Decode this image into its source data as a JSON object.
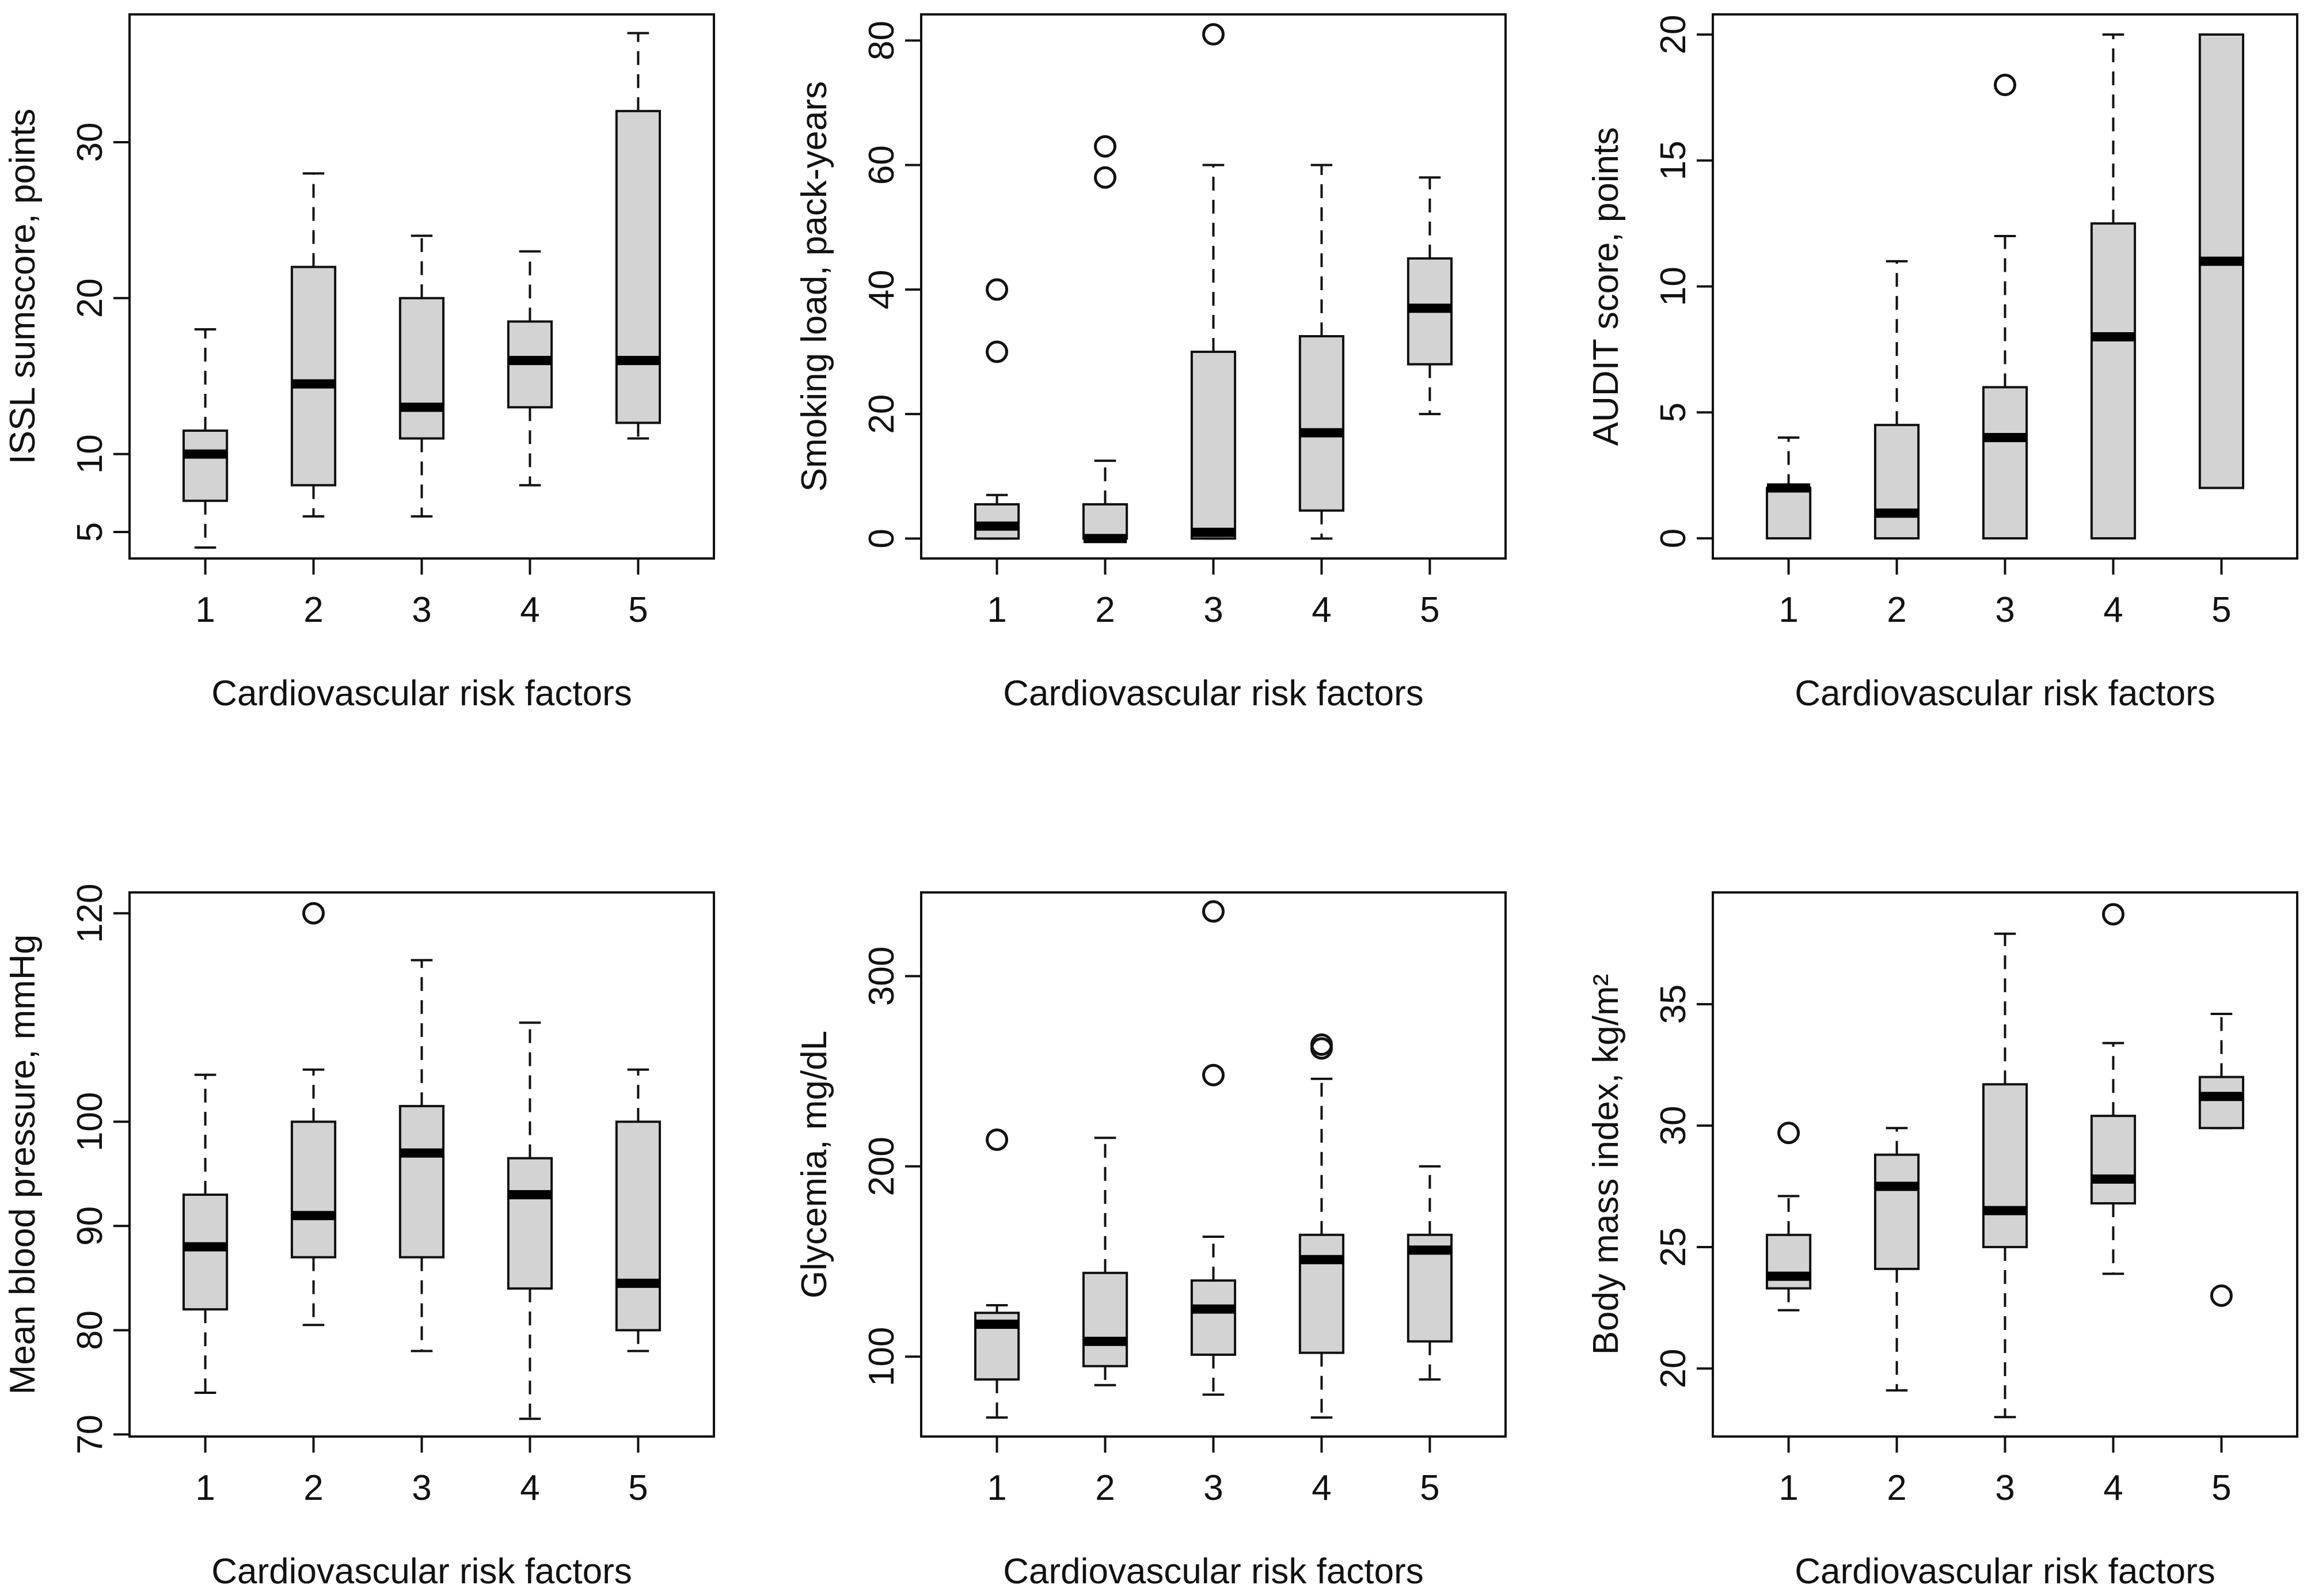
{
  "chart_data": [
    {
      "type": "boxplot",
      "xlabel": "Cardiovascular risk factors",
      "ylabel": "ISSL sumscore, points",
      "categories": [
        "1",
        "2",
        "3",
        "4",
        "5"
      ],
      "ylim": [
        3.3,
        38.2
      ],
      "yticks": [
        5,
        10,
        20,
        30
      ],
      "boxes": [
        {
          "whisker_low": 4,
          "q1": 7,
          "median": 10,
          "q3": 11.5,
          "whisker_high": 18,
          "outliers": []
        },
        {
          "whisker_low": 6,
          "q1": 8,
          "median": 14.5,
          "q3": 22,
          "whisker_high": 28,
          "outliers": []
        },
        {
          "whisker_low": 6,
          "q1": 11,
          "median": 13,
          "q3": 20,
          "whisker_high": 24,
          "outliers": []
        },
        {
          "whisker_low": 8,
          "q1": 13,
          "median": 16,
          "q3": 18.5,
          "whisker_high": 23,
          "outliers": []
        },
        {
          "whisker_low": 11,
          "q1": 12,
          "median": 16,
          "q3": 32,
          "whisker_high": 37,
          "outliers": []
        }
      ]
    },
    {
      "type": "boxplot",
      "xlabel": "Cardiovascular risk factors",
      "ylabel": "Smoking load, pack-years",
      "categories": [
        "1",
        "2",
        "3",
        "4",
        "5"
      ],
      "ylim": [
        -3.2,
        84.2
      ],
      "yticks": [
        0,
        20,
        40,
        60,
        80
      ],
      "boxes": [
        {
          "whisker_low": 0,
          "q1": 0,
          "median": 2,
          "q3": 5.5,
          "whisker_high": 7,
          "outliers": [
            30,
            40
          ]
        },
        {
          "whisker_low": 0,
          "q1": 0,
          "median": 0,
          "q3": 5.5,
          "whisker_high": 12.5,
          "outliers": [
            58,
            63
          ]
        },
        {
          "whisker_low": 0,
          "q1": 0,
          "median": 1,
          "q3": 30,
          "whisker_high": 60,
          "outliers": [
            81
          ]
        },
        {
          "whisker_low": 0,
          "q1": 4.5,
          "median": 17,
          "q3": 32.5,
          "whisker_high": 60,
          "outliers": []
        },
        {
          "whisker_low": 20,
          "q1": 28,
          "median": 37,
          "q3": 45,
          "whisker_high": 58,
          "outliers": []
        }
      ]
    },
    {
      "type": "boxplot",
      "xlabel": "Cardiovascular risk factors",
      "ylabel": "AUDIT score, points",
      "categories": [
        "1",
        "2",
        "3",
        "4",
        "5"
      ],
      "ylim": [
        -0.8,
        20.8
      ],
      "yticks": [
        0,
        5,
        10,
        15,
        20
      ],
      "boxes": [
        {
          "whisker_low": 0,
          "q1": 0,
          "median": 2,
          "q3": 2,
          "whisker_high": 4,
          "outliers": []
        },
        {
          "whisker_low": 0,
          "q1": 0,
          "median": 1,
          "q3": 4.5,
          "whisker_high": 11,
          "outliers": []
        },
        {
          "whisker_low": 0,
          "q1": 0,
          "median": 4,
          "q3": 6,
          "whisker_high": 12,
          "outliers": [
            18
          ]
        },
        {
          "whisker_low": 0,
          "q1": 0,
          "median": 8,
          "q3": 12.5,
          "whisker_high": 20,
          "outliers": []
        },
        {
          "whisker_low": 2,
          "q1": 2,
          "median": 11,
          "q3": 20,
          "whisker_high": 20,
          "outliers": []
        }
      ]
    },
    {
      "type": "boxplot",
      "xlabel": "Cardiovascular risk factors",
      "ylabel": "Mean blood pressure, mmHg",
      "categories": [
        "1",
        "2",
        "3",
        "4",
        "5"
      ],
      "ylim": [
        69.8,
        122
      ],
      "yticks": [
        70,
        80,
        90,
        100,
        120
      ],
      "boxes": [
        {
          "whisker_low": 74,
          "q1": 82,
          "median": 88,
          "q3": 93,
          "whisker_high": 104.5,
          "outliers": []
        },
        {
          "whisker_low": 80.5,
          "q1": 87,
          "median": 91,
          "q3": 100,
          "whisker_high": 105,
          "outliers": [
            120
          ]
        },
        {
          "whisker_low": 78,
          "q1": 87,
          "median": 97,
          "q3": 101.5,
          "whisker_high": 115.5,
          "outliers": []
        },
        {
          "whisker_low": 71.5,
          "q1": 84,
          "median": 93,
          "q3": 96.5,
          "whisker_high": 109.5,
          "outliers": []
        },
        {
          "whisker_low": 78,
          "q1": 80,
          "median": 84.5,
          "q3": 100,
          "whisker_high": 105,
          "outliers": []
        }
      ]
    },
    {
      "type": "boxplot",
      "xlabel": "Cardiovascular risk factors",
      "ylabel": "Glycemia, mg/dL",
      "categories": [
        "1",
        "2",
        "3",
        "4",
        "5"
      ],
      "ylim": [
        58,
        344
      ],
      "yticks": [
        100,
        200,
        300
      ],
      "boxes": [
        {
          "whisker_low": 68,
          "q1": 88,
          "median": 117,
          "q3": 123,
          "whisker_high": 127,
          "outliers": [
            214
          ]
        },
        {
          "whisker_low": 85,
          "q1": 95,
          "median": 108,
          "q3": 144,
          "whisker_high": 215,
          "outliers": []
        },
        {
          "whisker_low": 80,
          "q1": 101,
          "median": 125,
          "q3": 140,
          "whisker_high": 163,
          "outliers": [
            248,
            334
          ]
        },
        {
          "whisker_low": 68,
          "q1": 102,
          "median": 151,
          "q3": 164,
          "whisker_high": 246,
          "outliers": [
            262,
            264
          ]
        },
        {
          "whisker_low": 88,
          "q1": 108,
          "median": 156,
          "q3": 164,
          "whisker_high": 200,
          "outliers": []
        }
      ]
    },
    {
      "type": "boxplot",
      "xlabel": "Cardiovascular risk factors",
      "ylabel": "Body mass index, kg/m²",
      "categories": [
        "1",
        "2",
        "3",
        "4",
        "5"
      ],
      "ylim": [
        17.2,
        39.6
      ],
      "yticks": [
        20,
        25,
        30,
        35
      ],
      "boxes": [
        {
          "whisker_low": 22.4,
          "q1": 23.3,
          "median": 23.8,
          "q3": 25.5,
          "whisker_high": 27.1,
          "outliers": [
            29.7
          ]
        },
        {
          "whisker_low": 19.1,
          "q1": 24.1,
          "median": 27.5,
          "q3": 28.8,
          "whisker_high": 29.9,
          "outliers": []
        },
        {
          "whisker_low": 18,
          "q1": 25,
          "median": 26.5,
          "q3": 31.7,
          "whisker_high": 37.9,
          "outliers": []
        },
        {
          "whisker_low": 23.9,
          "q1": 26.8,
          "median": 27.8,
          "q3": 30.4,
          "whisker_high": 33.4,
          "outliers": [
            38.7
          ]
        },
        {
          "whisker_low": 29.9,
          "q1": 29.9,
          "median": 31.2,
          "q3": 32,
          "whisker_high": 34.6,
          "outliers": [
            23
          ]
        }
      ]
    }
  ]
}
